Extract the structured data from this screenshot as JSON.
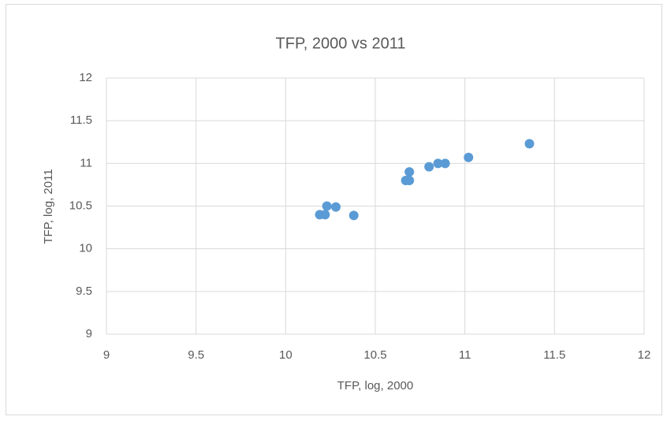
{
  "chart_data": {
    "type": "scatter",
    "title": "TFP, 2000 vs 2011",
    "x_label": "TFP, log, 2000",
    "y_label": "TFP, log, 2011",
    "color": "#5b9bd5",
    "grid": true,
    "x": [
      10.19,
      10.22,
      10.23,
      10.28,
      10.38,
      10.67,
      10.69,
      10.69,
      10.8,
      10.85,
      10.89,
      11.02,
      11.36
    ],
    "values": [
      10.4,
      10.4,
      10.5,
      10.49,
      10.39,
      10.8,
      10.8,
      10.9,
      10.96,
      11.0,
      11.0,
      11.07,
      11.23
    ],
    "xlim": [
      9,
      12
    ],
    "xticks": [
      9,
      9.5,
      10,
      10.5,
      11,
      11.5,
      12
    ],
    "ylim": [
      9,
      12
    ],
    "yticks": [
      9,
      9.5,
      10,
      10.5,
      11,
      11.5,
      12
    ]
  }
}
